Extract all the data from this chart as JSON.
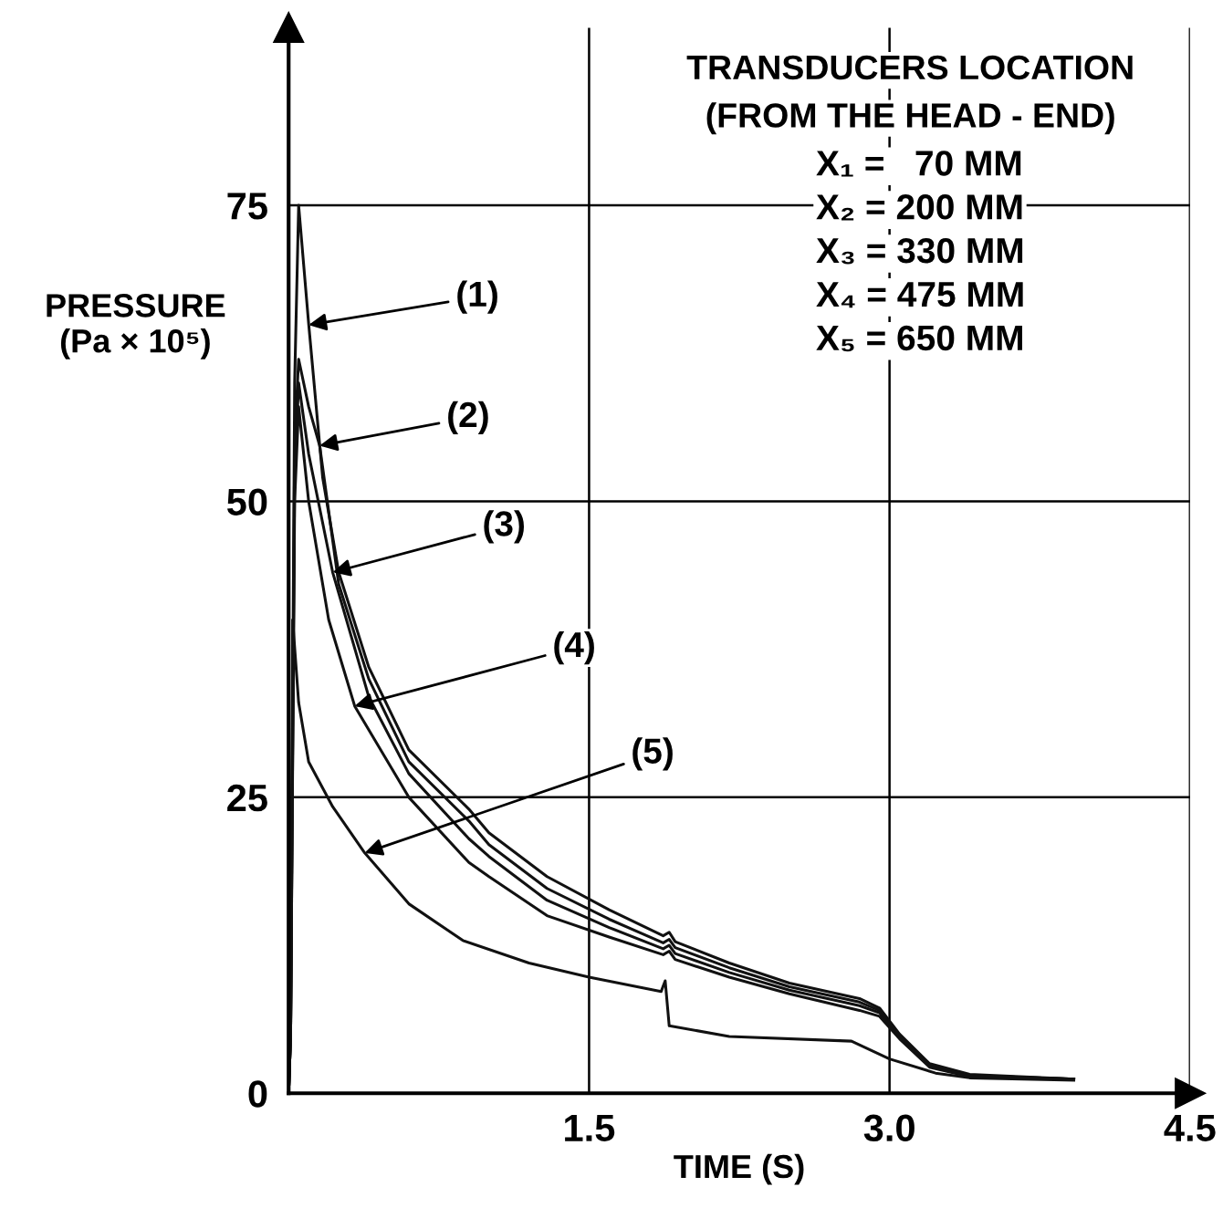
{
  "chart_data": {
    "type": "line",
    "xlabel": "TIME (S)",
    "ylabel": "PRESSURE\n(Pa × 10⁵)",
    "xlim": [
      0,
      4.5
    ],
    "ylim": [
      0,
      90
    ],
    "xticks": [
      {
        "value": 0,
        "label": null
      },
      1.5,
      {
        "value": 3,
        "label": "3.0"
      },
      4.5
    ],
    "yticks": [
      0,
      25,
      50,
      75
    ],
    "grid": true,
    "legend": false,
    "marker": "none",
    "line_style": "solid",
    "series": [
      {
        "color": "#111111",
        "x": [
          0,
          0.01,
          0.03,
          0.05,
          0.1,
          0.17,
          0.25,
          0.4,
          0.6,
          0.9,
          1.0,
          1.29,
          1.6,
          1.87,
          1.9,
          1.93,
          2.2,
          2.5,
          2.85,
          2.95,
          3.05,
          3.2,
          3.4,
          3.92
        ],
        "values": [
          0,
          5,
          60,
          75,
          65,
          52,
          44,
          36,
          29,
          24,
          22,
          18.3,
          15.5,
          13.3,
          13.6,
          12.8,
          11,
          9.3,
          8,
          7.2,
          5,
          2.5,
          1.6,
          1.2
        ]
      },
      {
        "color": "#111111",
        "x": [
          0,
          0.01,
          0.03,
          0.05,
          0.1,
          0.155,
          0.25,
          0.4,
          0.6,
          0.9,
          1.0,
          1.29,
          1.6,
          1.87,
          1.9,
          1.93,
          2.2,
          2.5,
          2.85,
          2.95,
          3.05,
          3.2,
          3.4,
          3.92
        ],
        "values": [
          0,
          5,
          55,
          62,
          58,
          54.7,
          43,
          35,
          28,
          23,
          21,
          17.3,
          14.7,
          12.7,
          13.0,
          12.3,
          10.6,
          9.0,
          7.7,
          7.0,
          4.9,
          2.4,
          1.5,
          1.2
        ]
      },
      {
        "color": "#111111",
        "x": [
          0,
          0.01,
          0.03,
          0.05,
          0.1,
          0.22,
          0.4,
          0.6,
          0.9,
          1.0,
          1.29,
          1.6,
          1.87,
          1.9,
          1.93,
          2.2,
          2.5,
          2.85,
          2.95,
          3.05,
          3.2,
          3.4,
          3.92
        ],
        "values": [
          0,
          5,
          52,
          60,
          54,
          44,
          33.5,
          27,
          21.5,
          20,
          16.3,
          14,
          12.2,
          12.5,
          11.8,
          10.2,
          8.7,
          7.4,
          6.8,
          4.8,
          2.3,
          1.5,
          1.2
        ]
      },
      {
        "color": "#111111",
        "x": [
          0,
          0.01,
          0.03,
          0.05,
          0.1,
          0.2,
          0.33,
          0.6,
          0.9,
          1.0,
          1.29,
          1.6,
          1.87,
          1.9,
          1.93,
          2.2,
          2.5,
          2.85,
          2.95,
          3.05,
          3.2,
          3.4,
          3.92
        ],
        "values": [
          0,
          5,
          50,
          58,
          50,
          40,
          32.7,
          25,
          19.5,
          18.3,
          15.0,
          13.2,
          11.7,
          12.0,
          11.3,
          9.8,
          8.4,
          7.0,
          6.5,
          4.6,
          2.2,
          1.4,
          1.2
        ]
      },
      {
        "color": "#111111",
        "x": [
          0,
          0.01,
          0.02,
          0.05,
          0.1,
          0.22,
          0.38,
          0.6,
          0.87,
          1.2,
          1.5,
          1.86,
          1.88,
          1.9,
          2.2,
          2.81,
          3.0,
          3.23,
          3.4,
          3.92
        ],
        "values": [
          0,
          5,
          40,
          33,
          28,
          24.2,
          20.3,
          16,
          12.9,
          11,
          9.8,
          8.6,
          9.5,
          5.7,
          4.8,
          4.4,
          2.9,
          1.7,
          1.3,
          1.1
        ]
      }
    ],
    "annotations": [
      {
        "text": "(1)",
        "x": 0.1,
        "y": 64.9
      },
      {
        "text": "(2)",
        "x": 0.155,
        "y": 54.7
      },
      {
        "text": "(3)",
        "x": 0.22,
        "y": 44
      },
      {
        "text": "(4)",
        "x": 0.33,
        "y": 32.7
      },
      {
        "text": "(5)",
        "x": 0.38,
        "y": 20.3
      },
      "TRANSDUCERS LOCATION",
      "(FROM THE HEAD - END)",
      "X₁ =   70 MM",
      "X₂ = 200 MM",
      "X₃ = 330 MM",
      "X₄ = 475 MM",
      "X₅ = 650 MM"
    ]
  }
}
